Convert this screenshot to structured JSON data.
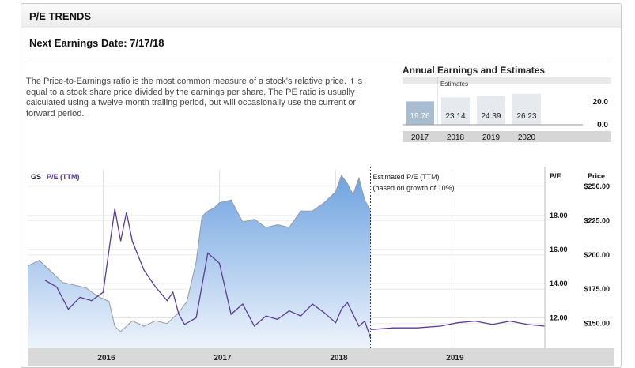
{
  "panel": {
    "title": "P/E TRENDS",
    "earnings_date_text": "Next Earnings Date: 7/17/18",
    "description": "The Price-to-Earnings ratio is the most common measure of a stock's relative price. It is equal to a stock share price divided by the earnings per share. The PE ratio is usually calculated using a twelve month trailing period, but will occasionally use the current or forward period."
  },
  "annual": {
    "title": "Annual Earnings and Estimates",
    "estimates_label": "Estimates",
    "years": [
      "2017",
      "2018",
      "2019",
      "2020"
    ],
    "values": [
      19.76,
      23.14,
      24.39,
      26.23
    ],
    "labels": [
      "19.76",
      "23.14",
      "24.39",
      "26.23"
    ],
    "axis_ticks": [
      "20.0",
      "0.0"
    ],
    "axis_values": [
      20.0,
      0.0
    ],
    "actual_color": "#a9bdd0",
    "estimate_color": "#e6eaee"
  },
  "chart_data": {
    "type": "line",
    "ticker": "GS",
    "series_label": "P/E (TTM)",
    "estimate_note_line1": "Estimated P/E (TTM)",
    "estimate_note_line2": "(based on growth of 10%)",
    "right_header_pe": "P/E",
    "right_header_price": "Price",
    "pe_ticks": [
      "18.00",
      "16.00",
      "14.00",
      "12.00"
    ],
    "pe_tick_values": [
      18,
      16,
      14,
      12
    ],
    "price_ticks": [
      "$250.00",
      "$225.00",
      "$200.00",
      "$175.00",
      "$150.00"
    ],
    "price_tick_values": [
      250,
      225,
      200,
      175,
      150
    ],
    "x_ticks": [
      "2016",
      "2017",
      "2018",
      "2019"
    ],
    "x_tick_values": [
      2016.0,
      2017.0,
      2018.0,
      2019.0
    ],
    "x_range": [
      2015.35,
      2019.8
    ],
    "pe_range": [
      10.2,
      20.7
    ],
    "price_range": [
      132,
      262
    ],
    "estimate_start": 2018.3,
    "price_series": {
      "name": "Price",
      "x": [
        2015.35,
        2015.45,
        2015.55,
        2015.65,
        2015.75,
        2015.85,
        2015.95,
        2016.05,
        2016.1,
        2016.15,
        2016.25,
        2016.35,
        2016.45,
        2016.55,
        2016.65,
        2016.72,
        2016.8,
        2016.85,
        2016.9,
        2016.95,
        2017.0,
        2017.1,
        2017.2,
        2017.3,
        2017.4,
        2017.5,
        2017.6,
        2017.7,
        2017.8,
        2017.9,
        2018.0,
        2018.05,
        2018.1,
        2018.15,
        2018.2,
        2018.25,
        2018.3
      ],
      "y": [
        192,
        196,
        188,
        180,
        178,
        176,
        170,
        166,
        148,
        144,
        152,
        148,
        152,
        150,
        158,
        166,
        195,
        228,
        232,
        234,
        238,
        240,
        224,
        226,
        220,
        222,
        220,
        232,
        232,
        238,
        246,
        258,
        252,
        244,
        256,
        240,
        232
      ]
    },
    "pe_series": {
      "name": "P/E (TTM)",
      "x": [
        2015.5,
        2015.6,
        2015.7,
        2015.8,
        2015.9,
        2016.0,
        2016.05,
        2016.1,
        2016.15,
        2016.2,
        2016.25,
        2016.35,
        2016.45,
        2016.55,
        2016.6,
        2016.65,
        2016.7,
        2016.8,
        2016.9,
        2017.0,
        2017.1,
        2017.2,
        2017.3,
        2017.4,
        2017.5,
        2017.6,
        2017.7,
        2017.8,
        2017.9,
        2018.0,
        2018.05,
        2018.1,
        2018.15,
        2018.2,
        2018.25,
        2018.3
      ],
      "y": [
        14.2,
        13.8,
        12.5,
        13.2,
        13.0,
        13.5,
        16.0,
        18.4,
        16.5,
        18.2,
        16.5,
        14.8,
        13.8,
        13.0,
        13.5,
        12.2,
        11.6,
        12.0,
        15.8,
        15.2,
        12.2,
        12.8,
        11.5,
        12.1,
        11.9,
        12.4,
        12.1,
        12.8,
        12.3,
        11.7,
        12.5,
        12.9,
        12.2,
        11.5,
        11.8,
        10.8
      ]
    },
    "estimate_series": {
      "name": "Estimated P/E (TTM)",
      "x": [
        2018.3,
        2018.5,
        2018.7,
        2018.9,
        2019.05,
        2019.2,
        2019.35,
        2019.5,
        2019.65,
        2019.8
      ],
      "y": [
        11.3,
        11.4,
        11.4,
        11.5,
        11.7,
        11.8,
        11.6,
        11.8,
        11.6,
        11.5
      ]
    },
    "grid": true,
    "area_top_color": "#6fa3e0",
    "area_bottom_color": "#eef4fc",
    "pe_color": "#5b3b96",
    "price_line_color": "#9a9a9a",
    "axis_bar_color": "#d9d9d9"
  }
}
